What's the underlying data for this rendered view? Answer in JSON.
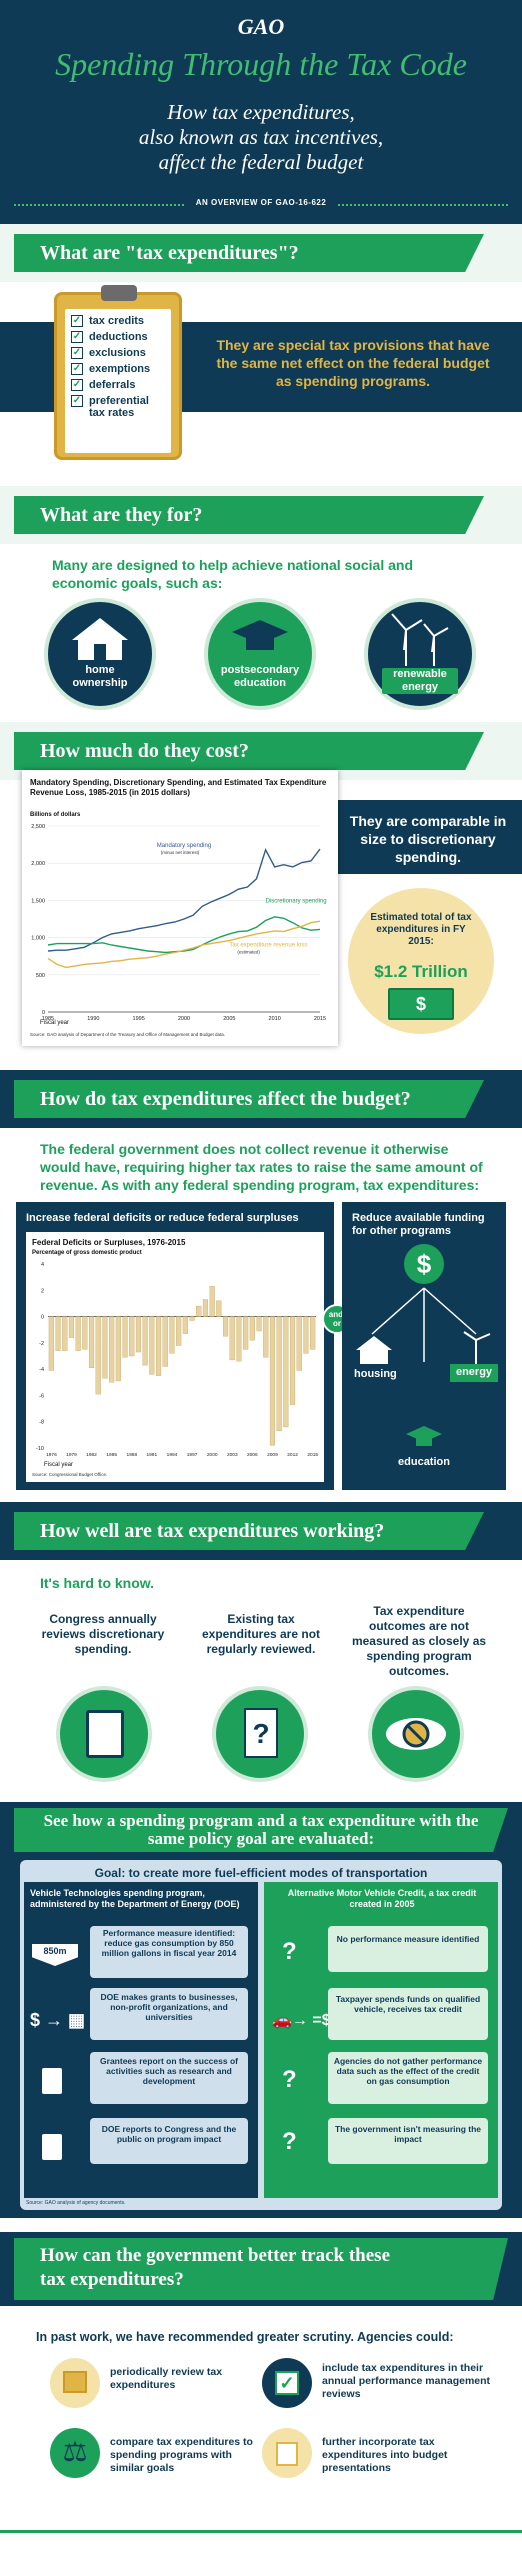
{
  "header": {
    "logo": "GAO",
    "title": "Spending Through the Tax Code",
    "subtitle_lines": [
      "How tax expenditures,",
      "also known as tax incentives,",
      "affect the federal budget"
    ],
    "overview": "AN OVERVIEW OF GAO-16-622"
  },
  "s1": {
    "heading": "What are \"tax expenditures\"?",
    "list": [
      "tax credits",
      "deductions",
      "exclusions",
      "exemptions",
      "deferrals",
      "preferential tax rates"
    ],
    "statement": "They are special tax provisions that have the same net effect on the federal budget as spending programs."
  },
  "s2": {
    "heading": "What are they for?",
    "lead": "Many are designed to help achieve national social and economic goals, such as:",
    "goals": [
      "home ownership",
      "postsecondary education",
      "renewable energy"
    ]
  },
  "s3": {
    "heading": "How much do they cost?",
    "compare": "They are comparable in size to discretionary spending.",
    "estimate_label": "Estimated total of tax expenditures in FY 2015:",
    "estimate_value": "$1.2 Trillion"
  },
  "chart_data": [
    {
      "type": "line",
      "title": "Mandatory Spending, Discretionary Spending, and Estimated Tax Expenditure Revenue Loss, 1985-2015 (in 2015 dollars)",
      "ylabel": "Billions of dollars",
      "xlabel": "Fiscal year",
      "ylim": [
        0,
        2500
      ],
      "yticks": [
        0,
        500,
        1000,
        1500,
        2000,
        2500
      ],
      "xticks": [
        1985,
        1990,
        1995,
        2000,
        2005,
        2010,
        2015
      ],
      "x": [
        1985,
        1986,
        1987,
        1988,
        1989,
        1990,
        1991,
        1992,
        1993,
        1994,
        1995,
        1996,
        1997,
        1998,
        1999,
        2000,
        2001,
        2002,
        2003,
        2004,
        2005,
        2006,
        2007,
        2008,
        2009,
        2010,
        2011,
        2012,
        2013,
        2014,
        2015
      ],
      "series": [
        {
          "name": "Mandatory spending",
          "note": "(minus net interest)",
          "color": "#2f5b8a",
          "values": [
            820,
            830,
            830,
            850,
            870,
            930,
            1000,
            1050,
            1070,
            1090,
            1120,
            1140,
            1160,
            1190,
            1210,
            1250,
            1300,
            1420,
            1480,
            1530,
            1580,
            1650,
            1680,
            1790,
            2180,
            1950,
            1980,
            1950,
            2010,
            2030,
            2190
          ]
        },
        {
          "name": "Discretionary spending",
          "color": "#1da15a",
          "values": [
            900,
            920,
            920,
            920,
            920,
            920,
            930,
            900,
            880,
            860,
            840,
            820,
            810,
            800,
            810,
            820,
            840,
            900,
            960,
            1010,
            1050,
            1080,
            1090,
            1140,
            1230,
            1280,
            1260,
            1200,
            1130,
            1100,
            1110
          ]
        },
        {
          "name": "Tax expenditure revenue loss",
          "note": "(estimated)",
          "color": "#e0b545",
          "values": [
            720,
            640,
            600,
            620,
            640,
            650,
            660,
            680,
            690,
            710,
            720,
            730,
            750,
            780,
            800,
            830,
            860,
            900,
            920,
            940,
            960,
            990,
            1020,
            1050,
            1070,
            1090,
            1080,
            1120,
            1150,
            1200,
            1220
          ]
        }
      ],
      "source": "Source: GAO analysis of Department of the Treasury and Office of Management and Budget data."
    },
    {
      "type": "bar",
      "title": "Federal Deficits or Surpluses, 1976-2015",
      "ylabel": "Percentage of gross domestic product",
      "xlabel": "Fiscal year",
      "ylim": [
        -10,
        4
      ],
      "yticks": [
        4,
        2,
        0,
        -2,
        -4,
        -6,
        -8,
        -10
      ],
      "xticks": [
        1976,
        1979,
        1982,
        1985,
        1988,
        1991,
        1994,
        1997,
        2000,
        2003,
        2006,
        2009,
        2012,
        2015
      ],
      "x": [
        1976,
        1977,
        1978,
        1979,
        1980,
        1981,
        1982,
        1983,
        1984,
        1985,
        1986,
        1987,
        1988,
        1989,
        1990,
        1991,
        1992,
        1993,
        1994,
        1995,
        1996,
        1997,
        1998,
        1999,
        2000,
        2001,
        2002,
        2003,
        2004,
        2005,
        2006,
        2007,
        2008,
        2009,
        2010,
        2011,
        2012,
        2013,
        2014,
        2015
      ],
      "values": [
        -4.1,
        -2.6,
        -2.6,
        -1.6,
        -2.6,
        -2.5,
        -3.9,
        -5.9,
        -4.7,
        -5.0,
        -4.9,
        -3.1,
        -3.0,
        -2.7,
        -3.7,
        -4.4,
        -4.5,
        -3.8,
        -2.8,
        -2.2,
        -1.3,
        -0.3,
        0.8,
        1.3,
        2.3,
        1.2,
        -1.5,
        -3.3,
        -3.4,
        -2.5,
        -1.8,
        -1.1,
        -3.1,
        -9.8,
        -8.7,
        -8.4,
        -6.7,
        -4.1,
        -2.8,
        -2.5
      ],
      "source": "Source: Congressional Budget Office."
    }
  ],
  "s4": {
    "heading": "How do tax expenditures affect the budget?",
    "lead": "The federal government does not collect revenue it otherwise would have, requiring higher tax rates to raise the same amount of revenue. As with any federal spending program, tax expenditures:",
    "left_title": "Increase federal deficits or reduce federal surpluses",
    "andor": "and/ or",
    "right_title": "Reduce available funding for other programs",
    "programs": [
      "housing",
      "energy",
      "education"
    ]
  },
  "s5": {
    "heading": "How well are tax expenditures working?",
    "lead": "It's hard to know.",
    "points": [
      "Congress annually reviews discretionary spending.",
      "Existing tax expenditures are not regularly reviewed.",
      "Tax expenditure outcomes are not measured as closely as spending program outcomes."
    ]
  },
  "s6": {
    "heading": "See how a spending program and a tax expenditure with the same policy goal are evaluated:",
    "goal": "Goal: to create more fuel-efficient modes of transportation",
    "left_title": "Vehicle Technologies spending program, administered by the Department of Energy (DOE)",
    "right_title": "Alternative Motor Vehicle Credit, a tax credit created in 2005",
    "badge": "850m",
    "left_items": [
      "Performance measure identified: reduce gas consumption by 850 million gallons in fiscal year 2014",
      "DOE makes grants to businesses, non-profit organizations, and universities",
      "Grantees report on the success of activities such as research and development",
      "DOE reports to Congress and the public on program impact"
    ],
    "right_items": [
      "No performance measure identified",
      "Taxpayer spends funds on qualified vehicle, receives tax credit",
      "Agencies do not gather performance data such as the effect of the credit on gas consumption",
      "The government isn't measuring the impact"
    ],
    "source": "Source: GAO analysis of agency documents."
  },
  "s7": {
    "heading_lines": [
      "How can the government better track these",
      "tax expenditures?"
    ],
    "lead": "In past work, we have recommended greater scrutiny. Agencies could:",
    "recs": [
      "periodically review tax expenditures",
      "include tax expenditures in their annual performance management reviews",
      "compare tax expenditures to spending programs with similar goals",
      "further incorporate tax expenditures into budget presentations"
    ]
  },
  "colors": {
    "navy": "#0f3a55",
    "green": "#1da15a",
    "gold": "#e0b545",
    "pale": "#cfe0ec"
  }
}
